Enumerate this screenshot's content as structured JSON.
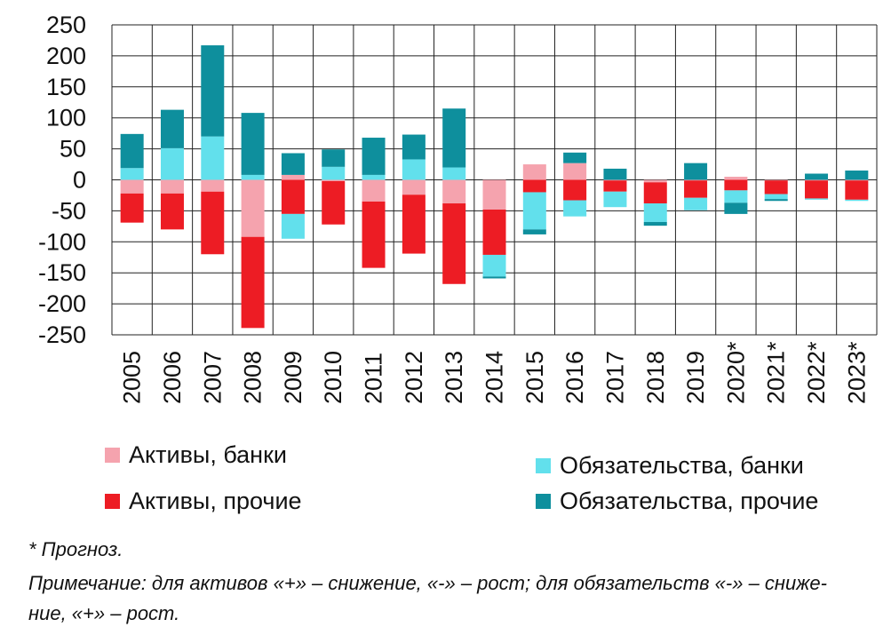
{
  "chart_data": {
    "type": "bar",
    "stacked": true,
    "title": "",
    "xlabel": "",
    "ylabel": "",
    "ylim": [
      -250,
      250
    ],
    "yticks": [
      250,
      200,
      150,
      100,
      50,
      0,
      -50,
      -100,
      -150,
      -200,
      -250
    ],
    "ytick_labels": [
      "250",
      "200",
      "150",
      "100",
      "50",
      "0",
      "-50",
      "-100",
      "-150",
      "-200",
      "-250"
    ],
    "grid": true,
    "categories": [
      "2005",
      "2006",
      "2007",
      "2008",
      "2009",
      "2010",
      "2011",
      "2012",
      "2013",
      "2014",
      "2015",
      "2016",
      "2017",
      "2018",
      "2019",
      "2020*",
      "2021*",
      "2022*",
      "2023*"
    ],
    "series": [
      {
        "name": "Активы, банки",
        "color": "#F5A3AE",
        "values": [
          -22,
          -22,
          -19,
          -92,
          8,
          -2,
          -35,
          -24,
          -38,
          -48,
          25,
          27,
          -1,
          -4,
          -1,
          5,
          -1,
          -1,
          -1
        ]
      },
      {
        "name": "Активы, прочие",
        "color": "#ED1C24",
        "values": [
          -47,
          -58,
          -101,
          -147,
          -55,
          -70,
          -107,
          -95,
          -130,
          -73,
          -20,
          -33,
          -18,
          -34,
          -28,
          -17,
          -22,
          -29,
          -31
        ]
      },
      {
        "name": "Обязательства, банки",
        "color": "#62E0EC",
        "values": [
          19,
          51,
          70,
          8,
          -40,
          21,
          8,
          33,
          20,
          -35,
          -60,
          -26,
          -25,
          -30,
          -20,
          -20,
          -8,
          -2,
          -2
        ]
      },
      {
        "name": "Обязательства, прочие",
        "color": "#0E8F9D",
        "values": [
          55,
          62,
          147,
          100,
          35,
          28,
          60,
          40,
          95,
          -3,
          -8,
          17,
          18,
          -6,
          27,
          -18,
          -3,
          10,
          15
        ]
      }
    ]
  },
  "legend": {
    "items": [
      {
        "label": "Активы, банки",
        "color": "#F5A3AE"
      },
      {
        "label": "Обязательства, банки",
        "color": "#62E0EC"
      },
      {
        "label": "Активы, прочие",
        "color": "#ED1C24"
      },
      {
        "label": "Обязательства, прочие",
        "color": "#0E8F9D"
      }
    ]
  },
  "notes": {
    "forecast": "* Прогноз.",
    "remark_line1": "Примечание: для активов «+» – снижение, «-» – рост; для обязательств «-» – сниже-",
    "remark_line2": "ние, «+» – рост."
  }
}
